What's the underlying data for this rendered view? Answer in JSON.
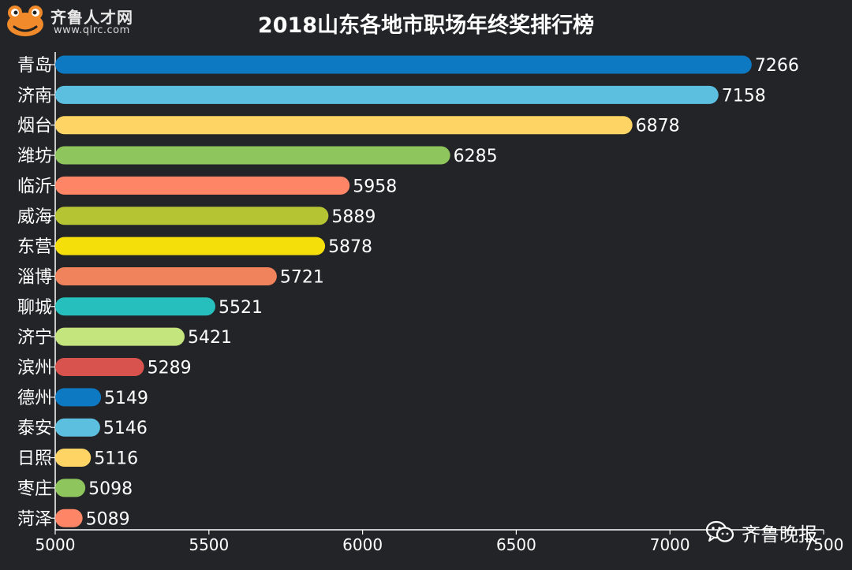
{
  "header": {
    "title": "2018山东各地市职场年终奖排行榜",
    "logo_brand": "齐鲁人才网",
    "logo_url": "www.qlrc.com"
  },
  "watermark": {
    "text": "齐鲁晚报",
    "icon": "wechat-icon"
  },
  "chart_data": {
    "type": "bar",
    "orientation": "horizontal",
    "title": "2018山东各地市职场年终奖排行榜",
    "categories": [
      "青岛",
      "济南",
      "烟台",
      "潍坊",
      "临沂",
      "威海",
      "东营",
      "淄博",
      "聊城",
      "济宁",
      "滨州",
      "德州",
      "泰安",
      "日照",
      "枣庄",
      "菏泽"
    ],
    "values": [
      7266,
      7158,
      6878,
      6285,
      5958,
      5889,
      5878,
      5721,
      5521,
      5421,
      5289,
      5149,
      5146,
      5116,
      5098,
      5089
    ],
    "colors": [
      "#0d79c2",
      "#5cbfe0",
      "#fed565",
      "#8ec55c",
      "#fe8566",
      "#b5c432",
      "#f5df0a",
      "#f0825c",
      "#27bfbd",
      "#c4e57e",
      "#d9534e",
      "#0d79c2",
      "#5cbfe0",
      "#fed565",
      "#8ec55c",
      "#fe8566"
    ],
    "xlim": [
      5000,
      7500
    ],
    "xticks": [
      5000,
      5500,
      6000,
      6500,
      7000,
      7500
    ],
    "xlabel": "",
    "ylabel": "",
    "grid": false,
    "legend": "none",
    "data_labels": true
  }
}
